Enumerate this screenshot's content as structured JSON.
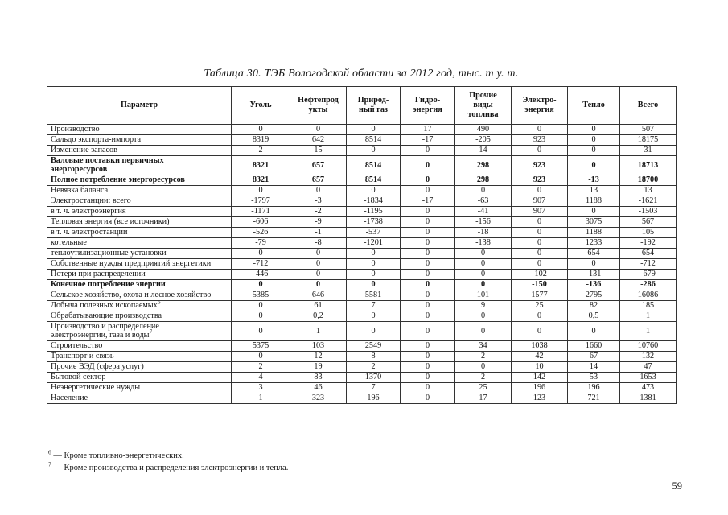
{
  "title": "Таблица 30. ТЭБ Вологодской области за 2012 год, тыс. т у. т.",
  "table": {
    "columns": [
      "Параметр",
      "Уголь",
      "Нефтепрод\nукты",
      "Природ-\nный газ",
      "Гидро-\nэнергия",
      "Прочие\nвиды\nтоплива",
      "Электро-\nэнергия",
      "Тепло",
      "Всего"
    ],
    "rows": [
      {
        "label": "Производство",
        "bold": false,
        "sup": "",
        "values": [
          "0",
          "0",
          "0",
          "17",
          "490",
          "0",
          "0",
          "507"
        ]
      },
      {
        "label": "Сальдо экспорта-импорта",
        "bold": false,
        "sup": "",
        "values": [
          "8319",
          "642",
          "8514",
          "-17",
          "-205",
          "923",
          "0",
          "18175"
        ]
      },
      {
        "label": "Изменение запасов",
        "bold": false,
        "sup": "",
        "values": [
          "2",
          "15",
          "0",
          "0",
          "14",
          "0",
          "0",
          "31"
        ]
      },
      {
        "label": "Валовые поставки первичных\nэнергоресурсов",
        "bold": true,
        "sup": "",
        "values": [
          "8321",
          "657",
          "8514",
          "0",
          "298",
          "923",
          "0",
          "18713"
        ]
      },
      {
        "label": "Полное потребление энергоресурсов",
        "bold": true,
        "sup": "",
        "values": [
          "8321",
          "657",
          "8514",
          "0",
          "298",
          "923",
          "-13",
          "18700"
        ]
      },
      {
        "label": "Невязка баланса",
        "bold": false,
        "sup": "",
        "values": [
          "0",
          "0",
          "0",
          "0",
          "0",
          "0",
          "13",
          "13"
        ]
      },
      {
        "label": "Электростанции: всего",
        "bold": false,
        "sup": "",
        "values": [
          "-1797",
          "-3",
          "-1834",
          "-17",
          "-63",
          "907",
          "1188",
          "-1621"
        ]
      },
      {
        "label": "в т. ч. электроэнергия",
        "bold": false,
        "sup": "",
        "values": [
          "-1171",
          "-2",
          "-1195",
          "0",
          "-41",
          "907",
          "0",
          "-1503"
        ]
      },
      {
        "label": "Тепловая энергия (все источники)",
        "bold": false,
        "sup": "",
        "values": [
          "-606",
          "-9",
          "-1738",
          "0",
          "-156",
          "0",
          "3075",
          "567"
        ]
      },
      {
        "label": "в т. ч. электростанции",
        "bold": false,
        "sup": "",
        "values": [
          "-526",
          "-1",
          "-537",
          "0",
          "-18",
          "0",
          "1188",
          "105"
        ]
      },
      {
        "label": "котельные",
        "bold": false,
        "sup": "",
        "values": [
          "-79",
          "-8",
          "-1201",
          "0",
          "-138",
          "0",
          "1233",
          "-192"
        ]
      },
      {
        "label": "теплоутилизационные установки",
        "bold": false,
        "sup": "",
        "values": [
          "0",
          "0",
          "0",
          "0",
          "0",
          "0",
          "654",
          "654"
        ]
      },
      {
        "label": "Собственные нужды предприятий энергетики",
        "bold": false,
        "sup": "",
        "values": [
          "-712",
          "0",
          "0",
          "0",
          "0",
          "0",
          "0",
          "-712"
        ]
      },
      {
        "label": "Потери при распределении",
        "bold": false,
        "sup": "",
        "values": [
          "-446",
          "0",
          "0",
          "0",
          "0",
          "-102",
          "-131",
          "-679"
        ]
      },
      {
        "label": "Конечное потребление энергии",
        "bold": true,
        "sup": "",
        "values": [
          "0",
          "0",
          "0",
          "0",
          "0",
          "-150",
          "-136",
          "-286"
        ]
      },
      {
        "label": "Сельское хозяйство, охота и лесное хозяйство",
        "bold": false,
        "sup": "",
        "values": [
          "5385",
          "646",
          "5581",
          "0",
          "101",
          "1577",
          "2795",
          "16086"
        ]
      },
      {
        "label": "Добыча полезных ископаемых",
        "bold": false,
        "sup": "6",
        "values": [
          "0",
          "61",
          "7",
          "0",
          "9",
          "25",
          "82",
          "185"
        ]
      },
      {
        "label": "Обрабатывающие производства",
        "bold": false,
        "sup": "",
        "values": [
          "0",
          "0,2",
          "0",
          "0",
          "0",
          "0",
          "0,5",
          "1"
        ]
      },
      {
        "label": "Производство и распределение\nэлектроэнергии, газа и воды",
        "bold": false,
        "sup": "7",
        "values": [
          "0",
          "1",
          "0",
          "0",
          "0",
          "0",
          "0",
          "1"
        ]
      },
      {
        "label": "Строительство",
        "bold": false,
        "sup": "",
        "values": [
          "5375",
          "103",
          "2549",
          "0",
          "34",
          "1038",
          "1660",
          "10760"
        ]
      },
      {
        "label": "Транспорт и связь",
        "bold": false,
        "sup": "",
        "values": [
          "0",
          "12",
          "8",
          "0",
          "2",
          "42",
          "67",
          "132"
        ]
      },
      {
        "label": "Прочие ВЭД (сфера услуг)",
        "bold": false,
        "sup": "",
        "values": [
          "2",
          "19",
          "2",
          "0",
          "0",
          "10",
          "14",
          "47"
        ]
      },
      {
        "label": "Бытовой сектор",
        "bold": false,
        "sup": "",
        "values": [
          "4",
          "83",
          "1370",
          "0",
          "2",
          "142",
          "53",
          "1653"
        ]
      },
      {
        "label": "Неэнергетические нужды",
        "bold": false,
        "sup": "",
        "values": [
          "3",
          "46",
          "7",
          "0",
          "25",
          "196",
          "196",
          "473"
        ]
      },
      {
        "label": "Население",
        "bold": false,
        "sup": "",
        "values": [
          "1",
          "323",
          "196",
          "0",
          "17",
          "123",
          "721",
          "1381"
        ]
      }
    ]
  },
  "footnotes": [
    {
      "marker": "6",
      "text": "— Кроме топливно-энергетических."
    },
    {
      "marker": "7",
      "text": "— Кроме производства и распределения электроэнергии и тепла."
    }
  ],
  "page_number": "59"
}
